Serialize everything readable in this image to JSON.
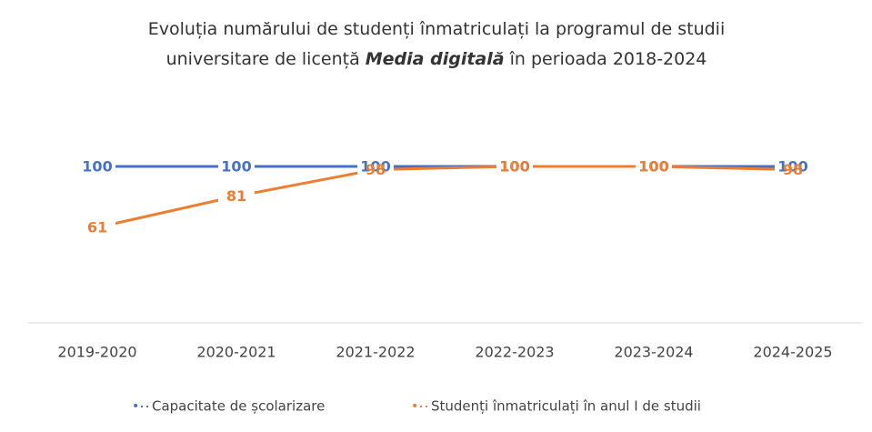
{
  "chart_data": {
    "type": "line",
    "title": {
      "before": "Evoluția numărului de studenți înmatriculați la programul de studii universitare de licență",
      "emphasis": "Media digitală",
      "after": "în perioada 2018-2024"
    },
    "categories": [
      "2019-2020",
      "2020-2021",
      "2021-2022",
      "2022-2023",
      "2023-2024",
      "2024-2025"
    ],
    "series": [
      {
        "name": "Capacitate de școlarizare",
        "color": "#4472c4",
        "values": [
          100,
          100,
          100,
          100,
          100,
          100
        ]
      },
      {
        "name": "Studenți înmatriculați în anul I de studii",
        "color": "#ed7d31",
        "values": [
          61,
          81,
          98,
          100,
          100,
          98
        ]
      }
    ],
    "ylim": [
      0,
      120
    ],
    "legend": "bottom",
    "data_labels": true
  }
}
